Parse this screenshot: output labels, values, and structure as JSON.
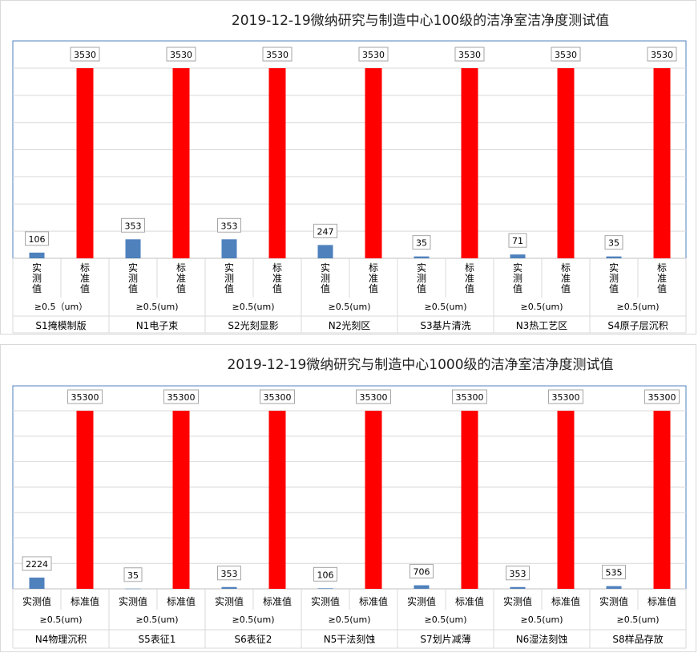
{
  "chart_data": [
    {
      "type": "bar",
      "title": "2019-12-19微纳研究与制造中心100级的洁净室洁净度测试值",
      "series_labels": [
        "实测值",
        "标准值"
      ],
      "particle_sizes": [
        "≥0.5（um）",
        "≥0.5(um)",
        "≥0.5(um)",
        "≥0.5(um)",
        "≥0.5(um)",
        "≥0.5(um)",
        "≥0.5(um)"
      ],
      "categories": [
        "S1掩模制版",
        "N1电子束",
        "S2光刻显影",
        "N2光刻区",
        "S3基片清洗",
        "N3热工艺区",
        "S4原子层沉积"
      ],
      "series": [
        {
          "name": "实测值",
          "color": "#4f81bd",
          "values": [
            106,
            353,
            353,
            247,
            35,
            71,
            35
          ]
        },
        {
          "name": "标准值",
          "color": "#ff0000",
          "values": [
            3530,
            3530,
            3530,
            3530,
            3530,
            3530,
            3530
          ]
        }
      ],
      "ylim": [
        0,
        3530
      ],
      "grid": true,
      "vertical_category_labels": true
    },
    {
      "type": "bar",
      "title": "2019-12-19微纳研究与制造中心1000级的洁净室洁净度测试值",
      "series_labels": [
        "实测值",
        "标准值"
      ],
      "particle_sizes": [
        "≥0.5(um)",
        "≥0.5(um)",
        "≥0.5(um)",
        "≥0.5(um)",
        "≥0.5(um)",
        "≥0.5(um)",
        "≥0.5(um)"
      ],
      "categories": [
        "N4物理沉积",
        "S5表征1",
        "S6表征2",
        "N5干法刻蚀",
        "S7划片减薄",
        "N6湿法刻蚀",
        "S8样品存放"
      ],
      "series": [
        {
          "name": "实测值",
          "color": "#4f81bd",
          "values": [
            2224,
            35,
            353,
            106,
            706,
            353,
            535
          ]
        },
        {
          "name": "标准值",
          "color": "#ff0000",
          "values": [
            35300,
            35300,
            35300,
            35300,
            35300,
            35300,
            35300
          ]
        }
      ],
      "ylim": [
        0,
        35300
      ],
      "grid": true,
      "vertical_category_labels": false
    }
  ]
}
